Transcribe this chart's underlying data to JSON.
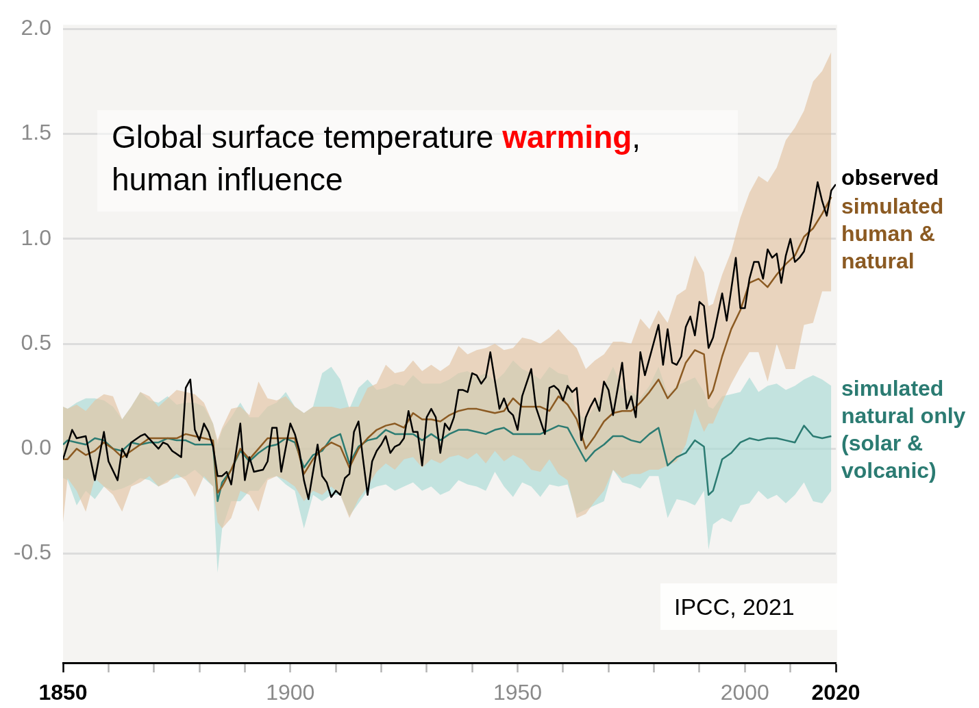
{
  "chart_data": {
    "type": "line",
    "title": "Global surface temperature warming, human influence",
    "annotations": [
      "IPCC, 2021"
    ],
    "x": [
      1850,
      1851,
      1853,
      1855,
      1857,
      1859,
      1861,
      1863,
      1865,
      1867,
      1869,
      1871,
      1873,
      1875,
      1877,
      1879,
      1881,
      1883,
      1884,
      1885,
      1887,
      1889,
      1891,
      1893,
      1895,
      1897,
      1899,
      1901,
      1903,
      1905,
      1907,
      1909,
      1911,
      1913,
      1915,
      1917,
      1919,
      1921,
      1923,
      1925,
      1927,
      1929,
      1931,
      1933,
      1935,
      1937,
      1939,
      1941,
      1943,
      1945,
      1947,
      1949,
      1951,
      1953,
      1955,
      1957,
      1959,
      1961,
      1963,
      1965,
      1967,
      1969,
      1971,
      1973,
      1975,
      1977,
      1979,
      1981,
      1983,
      1985,
      1987,
      1989,
      1991,
      1992,
      1993,
      1995,
      1997,
      1999,
      2001,
      2003,
      2005,
      2007,
      2009,
      2011,
      2013,
      2015,
      2017,
      2019
    ],
    "xlim": [
      1850,
      2020
    ],
    "xticks": [
      1850,
      {
        "value": 1860,
        "label": null
      },
      {
        "value": 1870,
        "label": null
      },
      {
        "value": 1880,
        "label": null
      },
      {
        "value": 1890,
        "label": null
      },
      1900,
      {
        "value": 1910,
        "label": null
      },
      {
        "value": 1920,
        "label": null
      },
      {
        "value": 1930,
        "label": null
      },
      {
        "value": 1940,
        "label": null
      },
      1950,
      {
        "value": 1960,
        "label": null
      },
      {
        "value": 1970,
        "label": null
      },
      {
        "value": 1980,
        "label": null
      },
      {
        "value": 1990,
        "label": null
      },
      2000,
      {
        "value": 2010,
        "label": null
      },
      2020
    ],
    "ylim": [
      -1.02,
      2.02
    ],
    "yticks": [
      -0.5,
      {
        "value": 0,
        "label": "0.0"
      },
      0.5,
      {
        "value": 1,
        "label": "1.0"
      },
      1.5,
      {
        "value": 2,
        "label": "2.0"
      }
    ],
    "grid": "y",
    "legend": "right",
    "marker": "none",
    "line_style": "solid",
    "series": [
      {
        "name": "observed",
        "color": "#000000",
        "x": [
          1850,
          1852,
          1853,
          1855,
          1857,
          1859,
          1860,
          1862,
          1863,
          1864,
          1865,
          1867,
          1868,
          1871,
          1872,
          1873,
          1874,
          1876,
          1877,
          1878,
          1879,
          1880,
          1881,
          1882,
          1883,
          1884,
          1885,
          1886,
          1887,
          1889,
          1890,
          1891,
          1892,
          1894,
          1895,
          1896,
          1897,
          1898,
          1900,
          1901,
          1902,
          1903,
          1904,
          1906,
          1907,
          1908,
          1909,
          1910,
          1911,
          1912,
          1913,
          1914,
          1915,
          1916,
          1917,
          1918,
          1919,
          1920,
          1921,
          1922,
          1923,
          1924,
          1925,
          1926,
          1927,
          1928,
          1929,
          1930,
          1931,
          1932,
          1933,
          1934,
          1935,
          1936,
          1937,
          1938,
          1939,
          1940,
          1941,
          1942,
          1943,
          1944,
          1946,
          1947,
          1948,
          1949,
          1950,
          1951,
          1953,
          1954,
          1956,
          1957,
          1958,
          1959,
          1960,
          1961,
          1962,
          1963,
          1964,
          1965,
          1966,
          1967,
          1968,
          1969,
          1970,
          1971,
          1973,
          1974,
          1975,
          1976,
          1977,
          1978,
          1981,
          1982,
          1983,
          1984,
          1985,
          1986,
          1987,
          1988,
          1989,
          1990,
          1991,
          1992,
          1993,
          1995,
          1996,
          1998,
          1999,
          2000,
          2001,
          2002,
          2003,
          2004,
          2005,
          2006,
          2007,
          2008,
          2009,
          2010,
          2011,
          2012,
          2013,
          2014,
          2015,
          2016,
          2017,
          2018,
          2019,
          2020
        ],
        "values": [
          -0.05,
          0.09,
          0.05,
          0.06,
          -0.15,
          0.08,
          -0.06,
          -0.15,
          0.0,
          -0.04,
          0.03,
          0.06,
          0.07,
          0.0,
          0.03,
          0.02,
          -0.01,
          -0.04,
          0.29,
          0.33,
          0.09,
          0.04,
          0.12,
          0.08,
          0.01,
          -0.13,
          -0.13,
          -0.11,
          -0.17,
          0.12,
          -0.15,
          -0.04,
          -0.11,
          -0.1,
          -0.06,
          0.1,
          0.1,
          -0.11,
          0.12,
          0.07,
          -0.01,
          -0.15,
          -0.24,
          0.02,
          -0.13,
          -0.16,
          -0.23,
          -0.2,
          -0.22,
          -0.14,
          -0.12,
          0.08,
          0.13,
          -0.05,
          -0.22,
          -0.06,
          -0.01,
          0.02,
          0.06,
          -0.02,
          0.01,
          0.02,
          0.05,
          0.18,
          0.08,
          0.08,
          -0.08,
          0.15,
          0.19,
          0.15,
          -0.02,
          0.12,
          0.09,
          0.15,
          0.28,
          0.28,
          0.27,
          0.36,
          0.35,
          0.31,
          0.34,
          0.46,
          0.19,
          0.24,
          0.18,
          0.16,
          0.09,
          0.25,
          0.38,
          0.2,
          0.07,
          0.29,
          0.3,
          0.28,
          0.23,
          0.3,
          0.27,
          0.29,
          0.04,
          0.15,
          0.2,
          0.24,
          0.18,
          0.32,
          0.28,
          0.16,
          0.41,
          0.19,
          0.25,
          0.15,
          0.46,
          0.35,
          0.59,
          0.4,
          0.57,
          0.41,
          0.4,
          0.44,
          0.58,
          0.63,
          0.54,
          0.7,
          0.68,
          0.48,
          0.53,
          0.74,
          0.61,
          0.91,
          0.67,
          0.67,
          0.81,
          0.89,
          0.89,
          0.81,
          0.95,
          0.91,
          0.93,
          0.79,
          0.92,
          1.0,
          0.89,
          0.91,
          0.94,
          1.02,
          1.14,
          1.27,
          1.18,
          1.11,
          1.23,
          1.26
        ]
      },
      {
        "name": "simulated human & natural",
        "color": "#8b5a22",
        "values": [
          -0.05,
          -0.05,
          0.0,
          -0.03,
          -0.01,
          0.03,
          0.0,
          -0.04,
          -0.01,
          0.02,
          0.05,
          0.05,
          0.05,
          0.05,
          0.07,
          0.06,
          0.05,
          0.04,
          -0.21,
          -0.18,
          -0.1,
          0.0,
          -0.05,
          0.0,
          0.05,
          0.05,
          0.05,
          0.05,
          -0.12,
          -0.05,
          0.0,
          0.03,
          0.01,
          -0.09,
          0.0,
          0.05,
          0.09,
          0.11,
          0.12,
          0.1,
          0.17,
          0.14,
          0.14,
          0.13,
          0.16,
          0.18,
          0.19,
          0.19,
          0.18,
          0.17,
          0.18,
          0.24,
          0.2,
          0.2,
          0.2,
          0.18,
          0.25,
          0.21,
          0.14,
          0.0,
          0.06,
          0.13,
          0.17,
          0.18,
          0.18,
          0.22,
          0.27,
          0.33,
          0.24,
          0.29,
          0.41,
          0.47,
          0.45,
          0.24,
          0.28,
          0.44,
          0.57,
          0.66,
          0.79,
          0.81,
          0.77,
          0.83,
          0.88,
          0.92,
          1.01,
          1.05,
          1.12,
          1.2
        ],
        "lower": [
          -0.35,
          -0.14,
          -0.2,
          -0.3,
          -0.14,
          -0.18,
          -0.22,
          -0.3,
          -0.18,
          -0.16,
          -0.13,
          -0.18,
          -0.16,
          -0.12,
          -0.15,
          -0.23,
          -0.13,
          -0.18,
          -0.35,
          -0.38,
          -0.33,
          -0.2,
          -0.22,
          -0.3,
          -0.15,
          -0.13,
          -0.15,
          -0.18,
          -0.25,
          -0.2,
          -0.22,
          -0.18,
          -0.22,
          -0.33,
          -0.24,
          -0.18,
          -0.11,
          -0.07,
          -0.1,
          -0.05,
          -0.04,
          -0.09,
          -0.05,
          -0.07,
          -0.04,
          -0.03,
          -0.05,
          -0.02,
          -0.07,
          -0.01,
          -0.06,
          -0.03,
          -0.05,
          -0.1,
          -0.11,
          -0.05,
          -0.12,
          -0.15,
          -0.33,
          -0.31,
          -0.25,
          -0.2,
          -0.1,
          -0.14,
          -0.12,
          -0.12,
          -0.1,
          -0.1,
          -0.08,
          -0.06,
          0.02,
          0.19,
          0.08,
          0.12,
          0.12,
          0.22,
          0.31,
          0.39,
          0.46,
          0.46,
          0.32,
          0.5,
          0.38,
          0.38,
          0.59,
          0.6,
          0.75,
          0.75
        ],
        "upper": [
          0.2,
          0.19,
          0.21,
          0.18,
          0.23,
          0.26,
          0.25,
          0.14,
          0.2,
          0.27,
          0.25,
          0.2,
          0.24,
          0.28,
          0.27,
          0.26,
          0.22,
          0.12,
          0.04,
          0.1,
          0.19,
          0.2,
          0.16,
          0.32,
          0.24,
          0.23,
          0.25,
          0.2,
          0.17,
          0.2,
          0.2,
          0.2,
          0.19,
          0.2,
          0.2,
          0.29,
          0.31,
          0.4,
          0.36,
          0.37,
          0.42,
          0.37,
          0.4,
          0.37,
          0.4,
          0.49,
          0.45,
          0.47,
          0.48,
          0.5,
          0.47,
          0.48,
          0.53,
          0.52,
          0.5,
          0.53,
          0.57,
          0.52,
          0.48,
          0.38,
          0.42,
          0.45,
          0.51,
          0.51,
          0.5,
          0.62,
          0.57,
          0.66,
          0.6,
          0.73,
          0.76,
          0.92,
          0.84,
          0.68,
          0.69,
          0.83,
          0.94,
          1.1,
          1.22,
          1.3,
          1.27,
          1.34,
          1.47,
          1.53,
          1.61,
          1.75,
          1.8,
          1.89
        ]
      },
      {
        "name": "simulated natural only (solar & volcanic)",
        "color": "#2b7b72",
        "values": [
          0.02,
          0.04,
          0.03,
          0.02,
          0.05,
          0.04,
          0.0,
          -0.01,
          0.03,
          0.02,
          0.03,
          0.03,
          0.05,
          0.04,
          0.04,
          0.02,
          0.02,
          0.02,
          -0.25,
          -0.16,
          -0.1,
          -0.01,
          -0.06,
          -0.02,
          0.01,
          0.02,
          0.05,
          0.03,
          -0.09,
          -0.03,
          -0.01,
          0.05,
          0.07,
          -0.07,
          0.01,
          0.04,
          0.05,
          0.09,
          0.07,
          0.07,
          0.07,
          0.04,
          0.07,
          0.04,
          0.07,
          0.09,
          0.09,
          0.08,
          0.07,
          0.09,
          0.1,
          0.07,
          0.07,
          0.07,
          0.07,
          0.09,
          0.11,
          0.1,
          0.02,
          -0.06,
          -0.01,
          0.02,
          0.06,
          0.06,
          0.04,
          0.03,
          0.07,
          0.1,
          -0.08,
          -0.04,
          -0.02,
          0.04,
          0.01,
          -0.22,
          -0.2,
          -0.05,
          -0.02,
          0.03,
          0.05,
          0.04,
          0.05,
          0.05,
          0.04,
          0.03,
          0.11,
          0.06,
          0.05,
          0.06
        ],
        "lower": [
          -0.14,
          -0.15,
          -0.27,
          -0.2,
          -0.24,
          -0.18,
          -0.2,
          -0.19,
          -0.17,
          -0.14,
          -0.15,
          -0.18,
          -0.15,
          -0.14,
          -0.13,
          -0.1,
          -0.14,
          -0.18,
          -0.59,
          -0.38,
          -0.25,
          -0.25,
          -0.2,
          -0.2,
          -0.14,
          -0.13,
          -0.17,
          -0.2,
          -0.38,
          -0.22,
          -0.25,
          -0.22,
          -0.22,
          -0.32,
          -0.26,
          -0.2,
          -0.18,
          -0.17,
          -0.2,
          -0.18,
          -0.16,
          -0.2,
          -0.18,
          -0.22,
          -0.2,
          -0.15,
          -0.17,
          -0.18,
          -0.2,
          -0.11,
          -0.18,
          -0.23,
          -0.16,
          -0.18,
          -0.23,
          -0.17,
          -0.18,
          -0.17,
          -0.31,
          -0.29,
          -0.27,
          -0.25,
          -0.1,
          -0.16,
          -0.17,
          -0.19,
          -0.13,
          -0.13,
          -0.33,
          -0.24,
          -0.25,
          -0.27,
          -0.2,
          -0.48,
          -0.36,
          -0.33,
          -0.35,
          -0.27,
          -0.26,
          -0.2,
          -0.24,
          -0.22,
          -0.26,
          -0.22,
          -0.16,
          -0.25,
          -0.26,
          -0.2
        ],
        "upper": [
          0.2,
          0.19,
          0.22,
          0.24,
          0.24,
          0.23,
          0.2,
          0.14,
          0.2,
          0.27,
          0.23,
          0.22,
          0.25,
          0.21,
          0.22,
          0.22,
          0.2,
          0.12,
          0.02,
          0.09,
          0.15,
          0.22,
          0.15,
          0.15,
          0.2,
          0.22,
          0.27,
          0.2,
          0.17,
          0.2,
          0.36,
          0.39,
          0.33,
          0.19,
          0.29,
          0.33,
          0.28,
          0.29,
          0.31,
          0.3,
          0.35,
          0.31,
          0.31,
          0.31,
          0.33,
          0.36,
          0.37,
          0.34,
          0.36,
          0.32,
          0.36,
          0.42,
          0.38,
          0.36,
          0.33,
          0.39,
          0.36,
          0.35,
          0.17,
          0.14,
          0.2,
          0.3,
          0.39,
          0.29,
          0.27,
          0.24,
          0.3,
          0.39,
          0.26,
          0.3,
          0.32,
          0.34,
          0.27,
          0.2,
          0.19,
          0.25,
          0.26,
          0.27,
          0.34,
          0.27,
          0.3,
          0.31,
          0.28,
          0.3,
          0.33,
          0.35,
          0.33,
          0.3
        ]
      }
    ]
  }
}
